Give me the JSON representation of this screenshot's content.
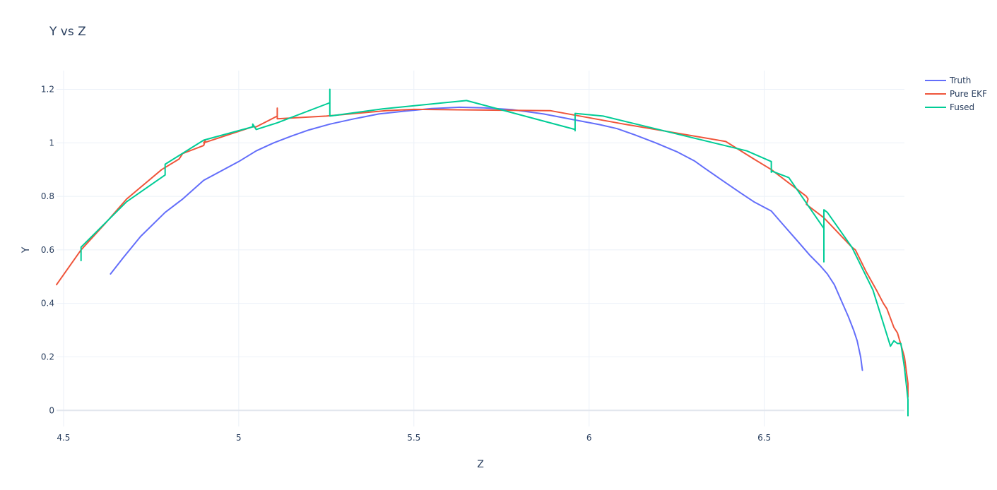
{
  "chart_data": {
    "type": "line",
    "title": "Y vs Z",
    "xlabel": "Z",
    "ylabel": "Y",
    "xlim": [
      4.48,
      6.9
    ],
    "ylim": [
      -0.06,
      1.27
    ],
    "xticks": [
      4.5,
      5,
      5.5,
      6,
      6.5
    ],
    "xtick_labels": [
      "4.5",
      "5",
      "5.5",
      "6",
      "6.5"
    ],
    "yticks": [
      0,
      0.2,
      0.4,
      0.6,
      0.8,
      1,
      1.2
    ],
    "ytick_labels": [
      "0",
      "0.2",
      "0.4",
      "0.6",
      "0.8",
      "1",
      "1.2"
    ],
    "grid": true,
    "legend_position": "top-right",
    "colors": {
      "Truth": "#636efa",
      "Pure EKF": "#ef553b",
      "Fused": "#00cc96"
    },
    "series": [
      {
        "name": "Truth",
        "color": "#636efa",
        "x": [
          4.634,
          4.67,
          4.72,
          4.79,
          4.84,
          4.9,
          5.0,
          5.05,
          5.1,
          5.15,
          5.2,
          5.26,
          5.33,
          5.4,
          5.47,
          5.55,
          5.63,
          5.7,
          5.78,
          5.87,
          5.95,
          6.03,
          6.08,
          6.13,
          6.19,
          6.25,
          6.3,
          6.33,
          6.38,
          6.43,
          6.47,
          6.52,
          6.55,
          6.59,
          6.63,
          6.66,
          6.68,
          6.7,
          6.72,
          6.74,
          6.755,
          6.765,
          6.775,
          6.78
        ],
        "y": [
          0.51,
          0.57,
          0.65,
          0.74,
          0.79,
          0.86,
          0.93,
          0.97,
          1.0,
          1.025,
          1.048,
          1.07,
          1.09,
          1.108,
          1.118,
          1.128,
          1.133,
          1.131,
          1.124,
          1.108,
          1.088,
          1.068,
          1.053,
          1.03,
          1.0,
          0.967,
          0.933,
          0.905,
          0.86,
          0.815,
          0.78,
          0.745,
          0.7,
          0.64,
          0.58,
          0.54,
          0.51,
          0.47,
          0.41,
          0.35,
          0.3,
          0.26,
          0.2,
          0.15
        ]
      },
      {
        "name": "Pure EKF",
        "color": "#ef553b",
        "x": [
          4.48,
          4.55,
          4.62,
          4.68,
          4.78,
          4.83,
          4.84,
          4.9,
          4.905,
          4.9,
          5.04,
          5.05,
          5.11,
          5.11,
          5.11,
          5.25,
          5.42,
          5.5,
          5.75,
          5.89,
          6.1,
          6.39,
          6.47,
          6.52,
          6.62,
          6.625,
          6.62,
          6.67,
          6.75,
          6.76,
          6.79,
          6.82,
          6.84,
          6.85,
          6.87,
          6.875,
          6.88,
          6.9,
          6.905,
          6.91,
          6.91
        ],
        "y": [
          0.47,
          0.6,
          0.7,
          0.79,
          0.9,
          0.94,
          0.96,
          0.99,
          1.01,
          1.0,
          1.06,
          1.06,
          1.1,
          1.13,
          1.09,
          1.1,
          1.12,
          1.125,
          1.122,
          1.12,
          1.07,
          1.005,
          0.94,
          0.9,
          0.8,
          0.79,
          0.77,
          0.72,
          0.61,
          0.6,
          0.52,
          0.45,
          0.4,
          0.38,
          0.31,
          0.3,
          0.29,
          0.2,
          0.15,
          0.1,
          0.05
        ]
      },
      {
        "name": "Fused",
        "color": "#00cc96",
        "x": [
          4.55,
          4.55,
          4.55,
          4.68,
          4.79,
          4.79,
          4.79,
          4.9,
          5.04,
          5.04,
          5.05,
          5.11,
          5.26,
          5.26,
          5.26,
          5.41,
          5.65,
          5.96,
          5.96,
          5.96,
          6.04,
          6.45,
          6.52,
          6.52,
          6.52,
          6.57,
          6.67,
          6.67,
          6.67,
          6.68,
          6.75,
          6.81,
          6.86,
          6.87,
          6.88,
          6.89,
          6.9,
          6.91,
          6.91
        ],
        "y": [
          0.6,
          0.56,
          0.61,
          0.78,
          0.88,
          0.92,
          0.92,
          1.01,
          1.06,
          1.07,
          1.05,
          1.075,
          1.15,
          1.2,
          1.1,
          1.127,
          1.158,
          1.05,
          1.045,
          1.11,
          1.1,
          0.97,
          0.93,
          0.89,
          0.895,
          0.87,
          0.68,
          0.555,
          0.75,
          0.74,
          0.61,
          0.45,
          0.24,
          0.26,
          0.25,
          0.25,
          0.16,
          0.04,
          -0.02
        ]
      }
    ]
  }
}
